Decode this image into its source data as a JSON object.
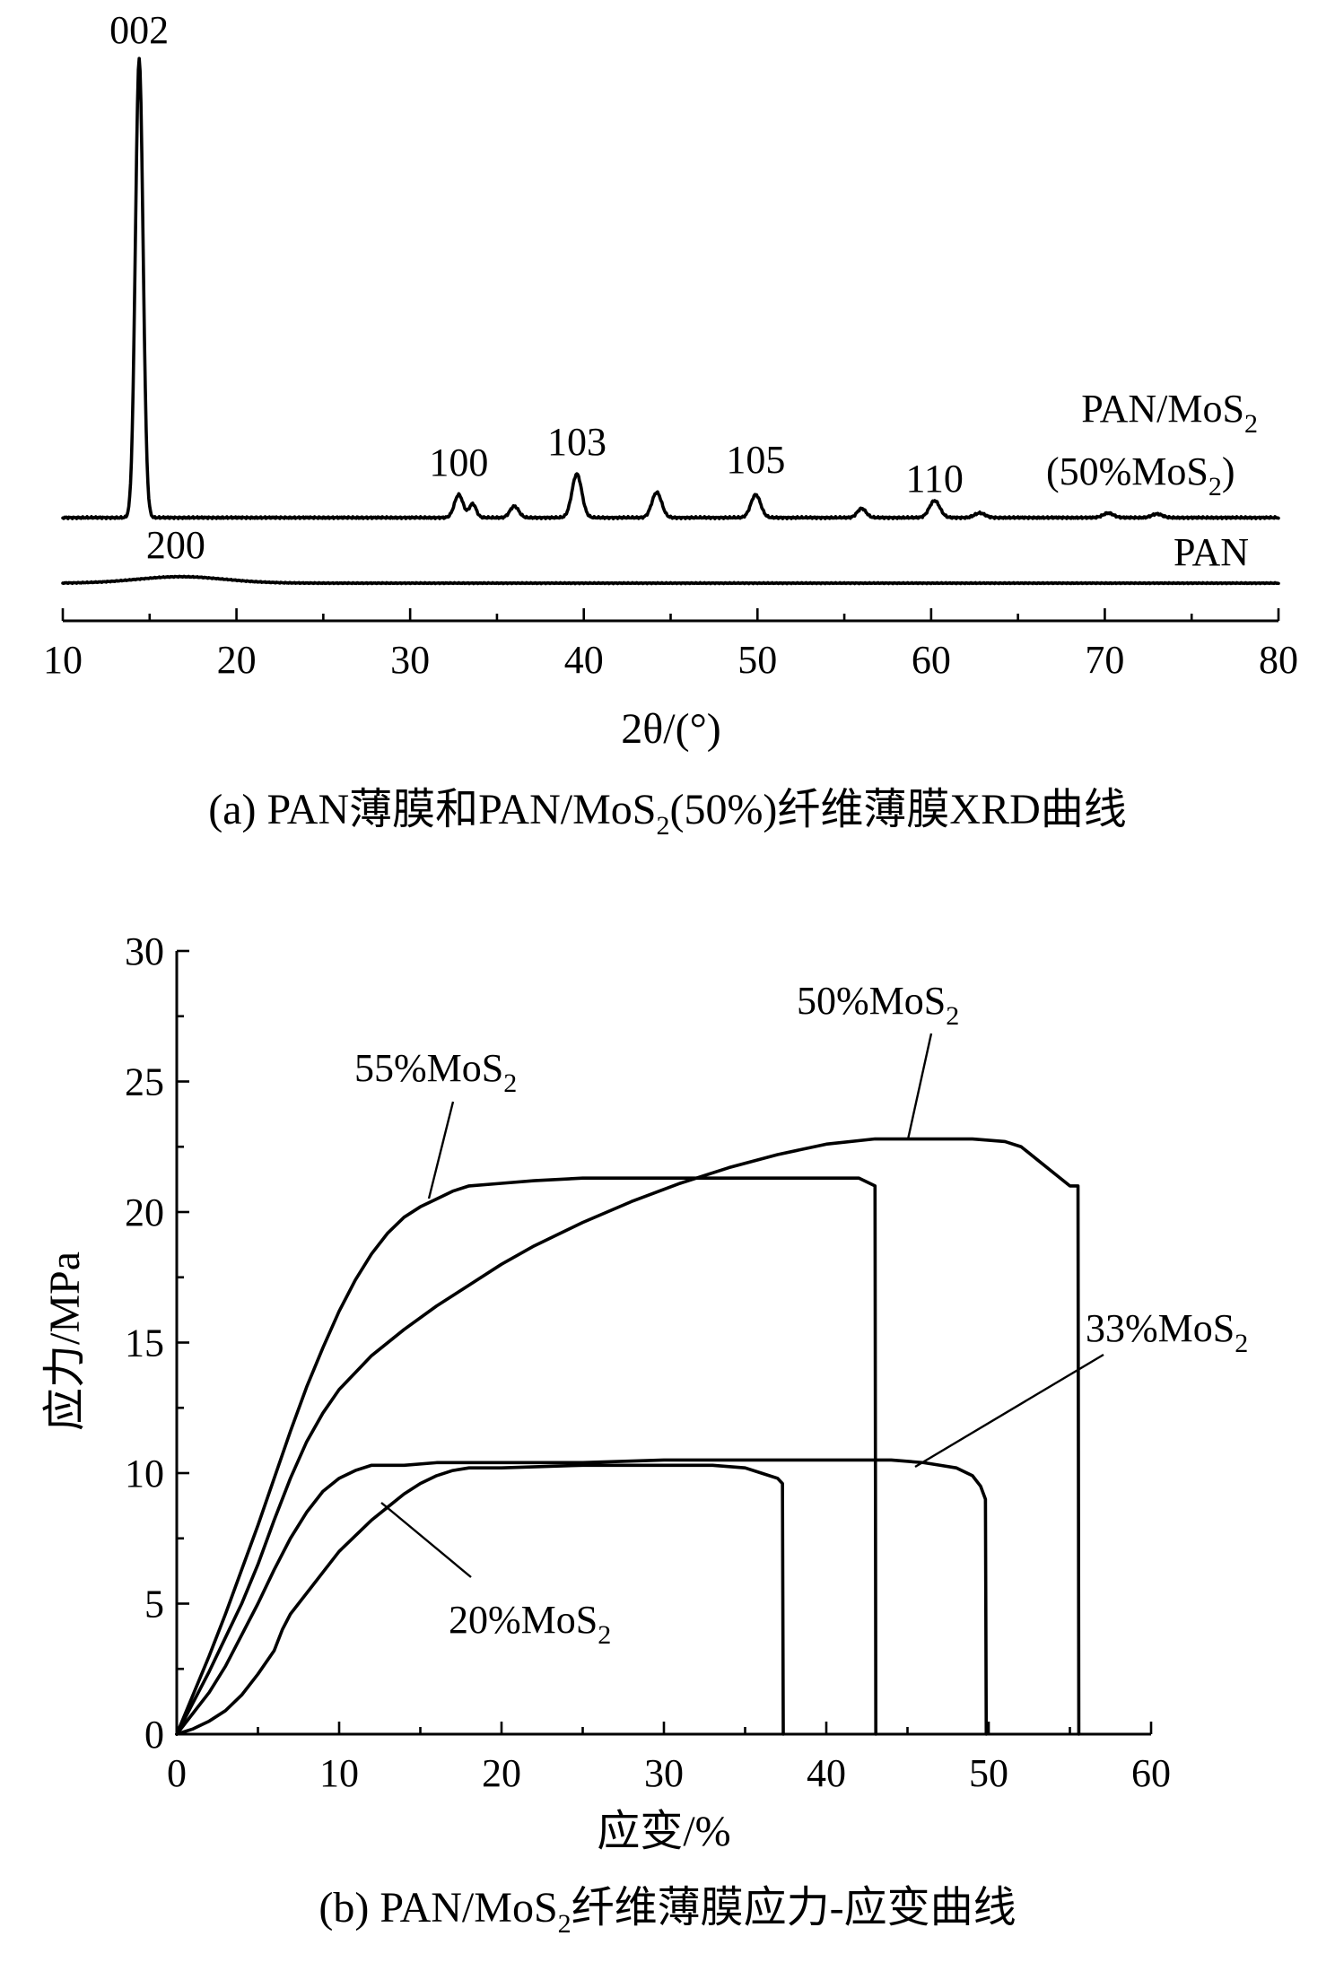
{
  "chart_data": [
    {
      "type": "line",
      "panel": "a",
      "caption": "(a) PAN薄膜和PAN/MoS₂(50%)纤维薄膜XRD曲线",
      "xlabel": "2θ/(°)",
      "ylabel": "",
      "xlim": [
        10,
        80
      ],
      "xticks": [
        10,
        20,
        30,
        40,
        50,
        60,
        70,
        80
      ],
      "y_axis_shown": false,
      "series": [
        {
          "name": "PAN/MoS₂ (50%MoS₂)",
          "peaks": [
            {
              "x": 14.4,
              "h": 1.0,
              "w": 0.22
            },
            {
              "x": 32.8,
              "h": 0.05,
              "w": 0.25
            },
            {
              "x": 33.6,
              "h": 0.03,
              "w": 0.2
            },
            {
              "x": 36.0,
              "h": 0.025,
              "w": 0.25
            },
            {
              "x": 39.6,
              "h": 0.095,
              "w": 0.28
            },
            {
              "x": 44.2,
              "h": 0.055,
              "w": 0.28
            },
            {
              "x": 49.9,
              "h": 0.05,
              "w": 0.28
            },
            {
              "x": 56.0,
              "h": 0.02,
              "w": 0.25
            },
            {
              "x": 60.2,
              "h": 0.037,
              "w": 0.3
            },
            {
              "x": 62.8,
              "h": 0.01,
              "w": 0.3
            },
            {
              "x": 70.2,
              "h": 0.01,
              "w": 0.3
            },
            {
              "x": 73.0,
              "h": 0.008,
              "w": 0.3
            }
          ]
        },
        {
          "name": "PAN",
          "peaks": [
            {
              "x": 16.8,
              "h": 0.014,
              "w": 2.5
            }
          ]
        }
      ],
      "series_labels": {
        "composite_line1": "PAN/MoS",
        "composite_line1_sub": "2",
        "composite_line2_a": "(50%MoS",
        "composite_line2_sub": "2",
        "composite_line2_b": ")",
        "pan": "PAN"
      },
      "annotations": [
        {
          "text": "002",
          "x": 14.4
        },
        {
          "text": "100",
          "x": 32.8
        },
        {
          "text": "103",
          "x": 39.6
        },
        {
          "text": "105",
          "x": 49.9
        },
        {
          "text": "110",
          "x": 60.2
        },
        {
          "text": "200",
          "x": 16.5
        }
      ]
    },
    {
      "type": "line",
      "panel": "b",
      "caption": "(b) PAN/MoS₂纤维薄膜应力-应变曲线",
      "xlabel": "应变/%",
      "ylabel": "应力/MPa",
      "xlim": [
        0,
        60
      ],
      "ylim": [
        0,
        30
      ],
      "xticks": [
        0,
        10,
        20,
        30,
        40,
        50,
        60
      ],
      "yticks": [
        0,
        5,
        10,
        15,
        20,
        25,
        30
      ],
      "series": [
        {
          "name": "55%MoS₂",
          "x": [
            0,
            1,
            2,
            3,
            4,
            5,
            6,
            7,
            8,
            9,
            10,
            11,
            12,
            13,
            14,
            15,
            16,
            17,
            18,
            20,
            22,
            25,
            30,
            35,
            40,
            42,
            43,
            43.05
          ],
          "y": [
            0,
            1.5,
            3.0,
            4.6,
            6.3,
            8.0,
            9.8,
            11.6,
            13.3,
            14.8,
            16.2,
            17.4,
            18.4,
            19.2,
            19.8,
            20.2,
            20.5,
            20.8,
            21.0,
            21.1,
            21.2,
            21.3,
            21.3,
            21.3,
            21.3,
            21.3,
            21.0,
            0
          ]
        },
        {
          "name": "50%MoS₂",
          "x": [
            0,
            1,
            2,
            3,
            4,
            5,
            6,
            7,
            8,
            9,
            10,
            12,
            14,
            16,
            18,
            20,
            22,
            25,
            28,
            31,
            34,
            37,
            40,
            43,
            46,
            49,
            51,
            52,
            53,
            54,
            55,
            55.5,
            55.55
          ],
          "y": [
            0,
            1.2,
            2.4,
            3.7,
            5.0,
            6.5,
            8.2,
            9.8,
            11.2,
            12.3,
            13.2,
            14.5,
            15.5,
            16.4,
            17.2,
            18.0,
            18.7,
            19.6,
            20.4,
            21.1,
            21.7,
            22.2,
            22.6,
            22.8,
            22.8,
            22.8,
            22.7,
            22.5,
            22.0,
            21.5,
            21.0,
            21.0,
            0
          ]
        },
        {
          "name": "33%MoS₂",
          "x": [
            0,
            1,
            2,
            3,
            4,
            5,
            6,
            7,
            8,
            9,
            10,
            11,
            12,
            14,
            16,
            20,
            25,
            30,
            35,
            40,
            44,
            46,
            47,
            48,
            49,
            49.5,
            49.8,
            49.85
          ],
          "y": [
            0,
            0.8,
            1.6,
            2.6,
            3.8,
            5.0,
            6.3,
            7.5,
            8.5,
            9.3,
            9.8,
            10.1,
            10.3,
            10.3,
            10.4,
            10.4,
            10.4,
            10.5,
            10.5,
            10.5,
            10.5,
            10.4,
            10.3,
            10.2,
            9.9,
            9.5,
            9.0,
            0
          ]
        },
        {
          "name": "20%MoS₂",
          "x": [
            0,
            1,
            2,
            3,
            4,
            5,
            6,
            6.5,
            7,
            8,
            9,
            10,
            11,
            12,
            13,
            14,
            15,
            16,
            17,
            18,
            20,
            25,
            30,
            33,
            35,
            36,
            37,
            37.3,
            37.35
          ],
          "y": [
            0,
            0.2,
            0.5,
            0.9,
            1.5,
            2.3,
            3.2,
            4.0,
            4.6,
            5.4,
            6.2,
            7.0,
            7.6,
            8.2,
            8.7,
            9.2,
            9.6,
            9.9,
            10.1,
            10.2,
            10.2,
            10.3,
            10.3,
            10.3,
            10.2,
            10.0,
            9.8,
            9.6,
            0
          ]
        }
      ],
      "annotations": [
        {
          "text_main": "55%MoS",
          "text_sub": "2"
        },
        {
          "text_main": "50%MoS",
          "text_sub": "2"
        },
        {
          "text_main": "33%MoS",
          "text_sub": "2"
        },
        {
          "text_main": "20%MoS",
          "text_sub": "2"
        }
      ]
    }
  ],
  "captions": {
    "a_pre": "(a) PAN薄膜和PAN/MoS",
    "a_sub": "2",
    "a_post": "(50%)纤维薄膜XRD曲线",
    "b_pre": "(b) PAN/MoS",
    "b_sub": "2",
    "b_post": "纤维薄膜应力-应变曲线"
  },
  "axes_titles": {
    "a_x": "2θ/(°)",
    "b_x": "应变/%",
    "b_y": "应力/MPa"
  }
}
